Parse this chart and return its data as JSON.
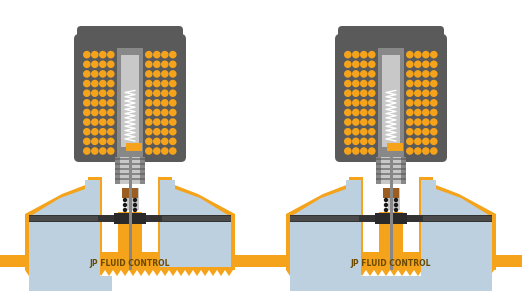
{
  "orange": "#F5A31A",
  "dark_gray": "#5A5A5A",
  "med_gray": "#888888",
  "light_gray": "#B0B0B0",
  "lighter_gray": "#C8C8C8",
  "light_blue": "#BDD0E0",
  "dark_slate": "#333333",
  "dark_mem": "#3A3A3A",
  "brown_seat": "#9B5E20",
  "bg": "#FFFFFF",
  "text_color": "#6B4A00",
  "label": "JP FLUID CONTROL",
  "label_fs": 5.5,
  "fw": 5.22,
  "fh": 2.91,
  "dpi": 100
}
